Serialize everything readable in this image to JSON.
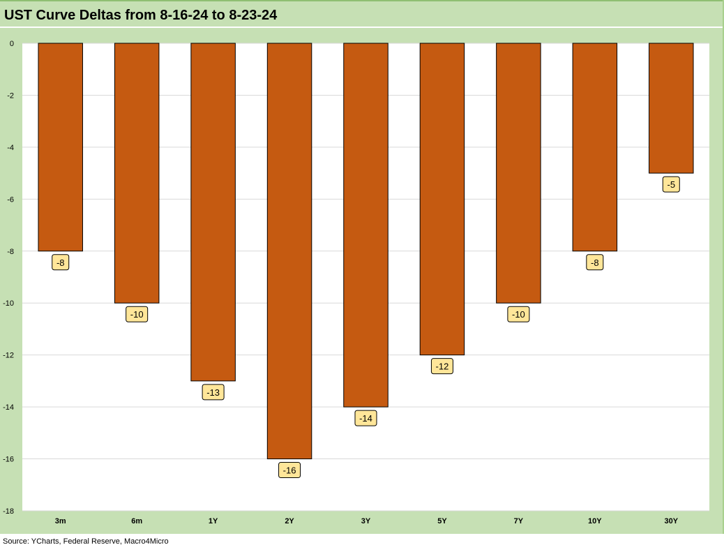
{
  "title": "UST Curve Deltas from 8-16-24 to 8-23-24",
  "source": "Source: YCharts, Federal Reserve, Macro4Micro",
  "colors": {
    "bar": "#c55a11",
    "bar_border": "#000000",
    "label_bg": "#ffe699",
    "frame": "#c6e0b4",
    "plot_bg": "#ffffff",
    "grid": "#d9d9d9"
  },
  "chart_data": {
    "type": "bar",
    "categories": [
      "3m",
      "6m",
      "1Y",
      "2Y",
      "3Y",
      "5Y",
      "7Y",
      "10Y",
      "30Y"
    ],
    "values": [
      -8,
      -10,
      -13,
      -16,
      -14,
      -12,
      -10,
      -8,
      -5
    ],
    "ylim": [
      -18,
      0
    ],
    "yticks": [
      0,
      -2,
      -4,
      -6,
      -8,
      -10,
      -12,
      -14,
      -16,
      -18
    ],
    "grid": true,
    "legend": "none",
    "data_labels": true
  }
}
